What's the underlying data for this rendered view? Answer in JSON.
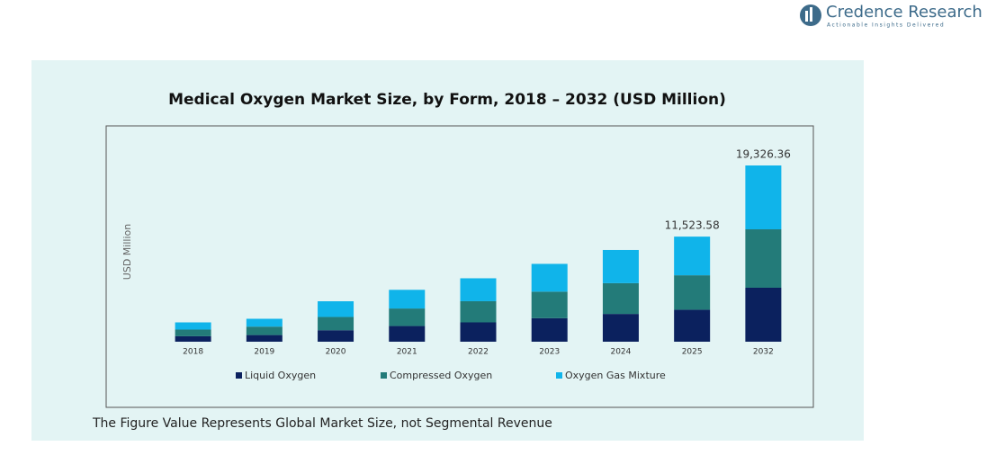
{
  "logo": {
    "name": "Credence Research",
    "tagline": "Actionable Insights Delivered"
  },
  "chart_data": {
    "type": "stacked_bar",
    "title": "Medical Oxygen Market Size, by Form, 2018 – 2032 (USD Million)",
    "y_label": "USD Million",
    "categories": [
      "2018",
      "2019",
      "2020",
      "2021",
      "2022",
      "2023",
      "2024",
      "2025",
      "2032"
    ],
    "series": [
      {
        "name": "Liquid Oxygen",
        "color": "#0b215e",
        "values": [
          600,
          730,
          1260,
          1720,
          2120,
          2580,
          3045,
          3510,
          5916
        ]
      },
      {
        "name": "Compressed Oxygen",
        "color": "#237b79",
        "values": [
          730,
          925,
          1455,
          1920,
          2320,
          2910,
          3375,
          3775,
          6409
        ]
      },
      {
        "name": "Oxygen Gas Mixture",
        "color": "#10b4ea",
        "values": [
          790,
          860,
          1720,
          2050,
          2515,
          3045,
          3640,
          4238.58,
          7001.36
        ]
      }
    ],
    "total_labels": [
      null,
      null,
      null,
      null,
      null,
      null,
      null,
      "11,523.58",
      "19,326.36"
    ],
    "legend": "bottom",
    "note": "The Figure Value Represents Global Market Size, not Segmental Revenue"
  }
}
